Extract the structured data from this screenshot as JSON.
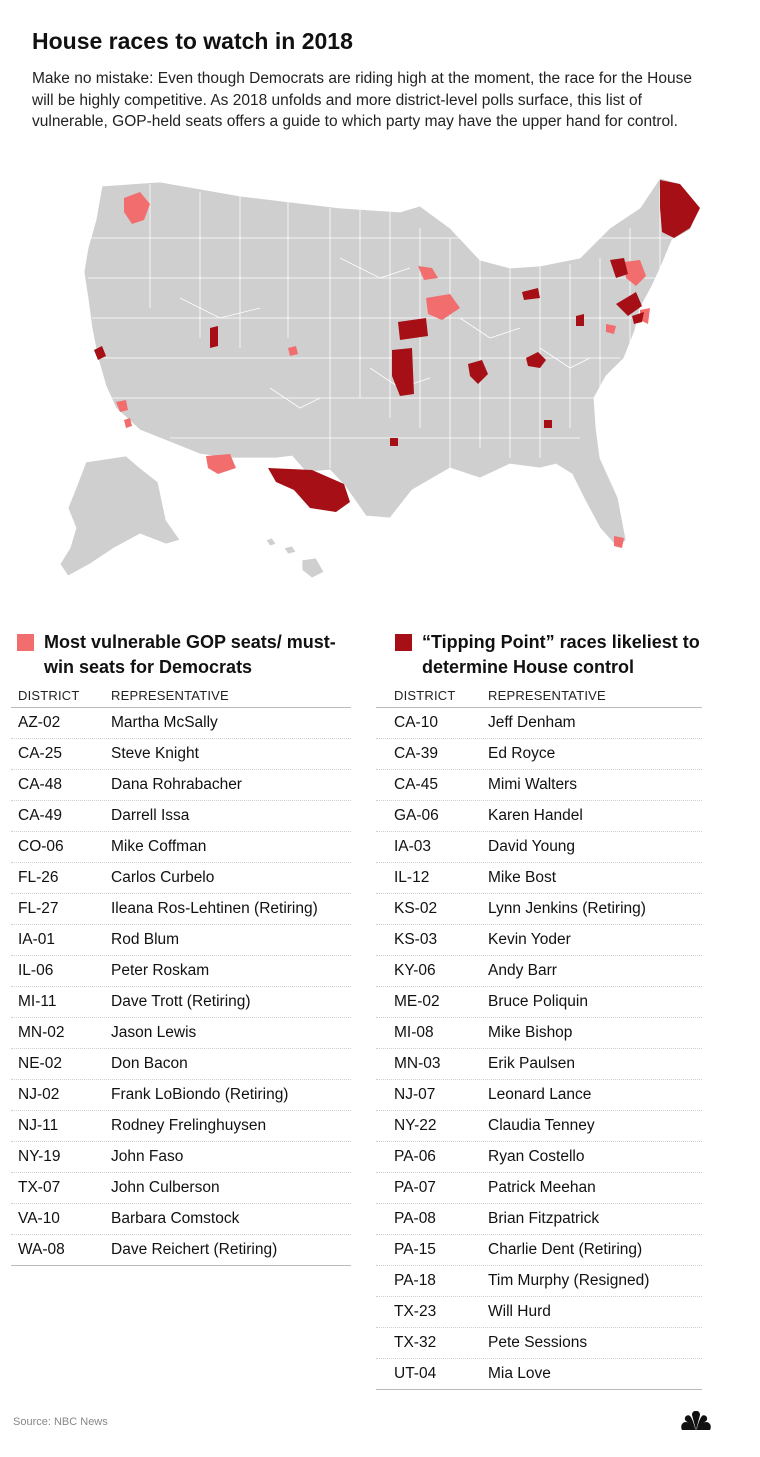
{
  "title": "House races to watch in 2018",
  "intro": "Make no mistake: Even though Democrats are riding high at the moment, the race for the House will be highly competitive. As 2018 unfolds and more district-level polls surface, this list of vulnerable, GOP-held seats offers a guide to which party may have the upper hand for control.",
  "colors": {
    "vulnerable": "#f26d6d",
    "tipping": "#a50f15",
    "land": "#cfcfcf",
    "border": "#ffffff"
  },
  "legend_left": {
    "label": "Most vulnerable GOP seats/ must-win seats for Democrats"
  },
  "legend_right": {
    "label": "“Tipping Point” races likeliest to determine House control"
  },
  "headers": {
    "district": "DISTRICT",
    "representative": "REPRESENTATIVE"
  },
  "vulnerable_seats": [
    {
      "district": "AZ-02",
      "rep": "Martha McSally"
    },
    {
      "district": "CA-25",
      "rep": "Steve Knight"
    },
    {
      "district": "CA-48",
      "rep": "Dana Rohrabacher"
    },
    {
      "district": "CA-49",
      "rep": "Darrell Issa"
    },
    {
      "district": "CO-06",
      "rep": "Mike Coffman"
    },
    {
      "district": "FL-26",
      "rep": "Carlos Curbelo"
    },
    {
      "district": "FL-27",
      "rep": "Ileana Ros-Lehtinen (Retiring)"
    },
    {
      "district": "IA-01",
      "rep": "Rod Blum"
    },
    {
      "district": "IL-06",
      "rep": "Peter Roskam"
    },
    {
      "district": "MI-11",
      "rep": "Dave Trott (Retiring)"
    },
    {
      "district": "MN-02",
      "rep": "Jason Lewis"
    },
    {
      "district": "NE-02",
      "rep": "Don Bacon"
    },
    {
      "district": "NJ-02",
      "rep": "Frank LoBiondo (Retiring)"
    },
    {
      "district": "NJ-11",
      "rep": "Rodney Frelinghuysen"
    },
    {
      "district": "NY-19",
      "rep": "John Faso"
    },
    {
      "district": "TX-07",
      "rep": "John Culberson"
    },
    {
      "district": "VA-10",
      "rep": "Barbara Comstock"
    },
    {
      "district": "WA-08",
      "rep": "Dave Reichert (Retiring)"
    }
  ],
  "tipping_point": [
    {
      "district": "CA-10",
      "rep": "Jeff Denham"
    },
    {
      "district": "CA-39",
      "rep": "Ed Royce"
    },
    {
      "district": "CA-45",
      "rep": "Mimi Walters"
    },
    {
      "district": "GA-06",
      "rep": "Karen Handel"
    },
    {
      "district": "IA-03",
      "rep": "David Young"
    },
    {
      "district": "IL-12",
      "rep": "Mike Bost"
    },
    {
      "district": "KS-02",
      "rep": "Lynn Jenkins (Retiring)"
    },
    {
      "district": "KS-03",
      "rep": "Kevin Yoder"
    },
    {
      "district": "KY-06",
      "rep": "Andy Barr"
    },
    {
      "district": "ME-02",
      "rep": "Bruce Poliquin"
    },
    {
      "district": "MI-08",
      "rep": "Mike Bishop"
    },
    {
      "district": "MN-03",
      "rep": "Erik Paulsen"
    },
    {
      "district": "NJ-07",
      "rep": "Leonard Lance"
    },
    {
      "district": "NY-22",
      "rep": "Claudia Tenney"
    },
    {
      "district": "PA-06",
      "rep": "Ryan Costello"
    },
    {
      "district": "PA-07",
      "rep": "Patrick Meehan"
    },
    {
      "district": "PA-08",
      "rep": "Brian Fitzpatrick"
    },
    {
      "district": "PA-15",
      "rep": "Charlie Dent (Retiring)"
    },
    {
      "district": "PA-18",
      "rep": "Tim Murphy (Resigned)"
    },
    {
      "district": "TX-23",
      "rep": "Will Hurd"
    },
    {
      "district": "TX-32",
      "rep": "Pete Sessions"
    },
    {
      "district": "UT-04",
      "rep": "Mia Love"
    }
  ],
  "source": "Source: NBC News",
  "logo_icon": "nbc-peacock-icon"
}
